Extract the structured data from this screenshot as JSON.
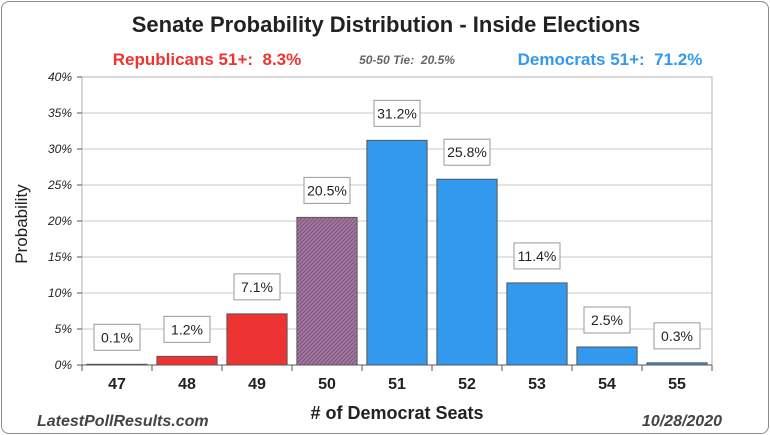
{
  "chart_data": {
    "type": "bar",
    "title": "Senate Probability Distribution - Inside Elections",
    "subtitles": {
      "republicans": "Republicans 51+:  8.3%",
      "tie": "50-50 Tie:  20.5%",
      "democrats": "Democrats 51+:  71.2%"
    },
    "xlabel": "# of Democrat Seats",
    "ylabel": "Probability",
    "ylim": [
      0,
      40
    ],
    "yticks": [
      0,
      5,
      10,
      15,
      20,
      25,
      30,
      35,
      40
    ],
    "ytick_labels": [
      "0%",
      "5%",
      "10%",
      "15%",
      "20%",
      "25%",
      "30%",
      "35%",
      "40%"
    ],
    "categories": [
      "47",
      "48",
      "49",
      "50",
      "51",
      "52",
      "53",
      "54",
      "55"
    ],
    "values": [
      0.1,
      1.2,
      7.1,
      20.5,
      31.2,
      25.8,
      11.4,
      2.5,
      0.3
    ],
    "data_labels": [
      "0.1%",
      "1.2%",
      "7.1%",
      "20.5%",
      "31.2%",
      "25.8%",
      "11.4%",
      "2.5%",
      "0.3%"
    ],
    "bar_colors": [
      "#ee3333",
      "#ee3333",
      "#ee3333",
      "#9a6b96",
      "#3399ee",
      "#3399ee",
      "#3399ee",
      "#3399ee",
      "#3399ee"
    ],
    "grid": true,
    "legend": "none"
  },
  "footer": {
    "source": "LatestPollResults.com",
    "date": "10/28/2020"
  },
  "colors": {
    "republican": "#ee3333",
    "tie": "#9a6b96",
    "democrat": "#3399ee",
    "tie_label": "#666666"
  }
}
